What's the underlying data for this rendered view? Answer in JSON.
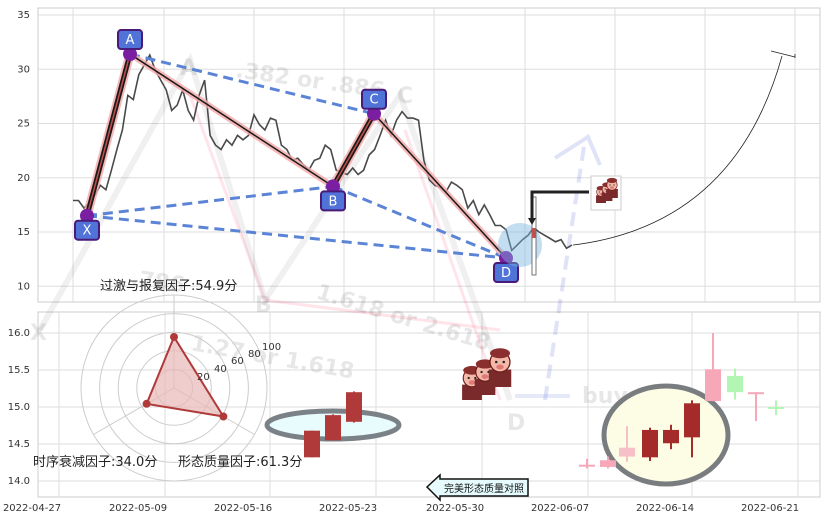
{
  "chart_data": [
    {
      "type": "line",
      "title": "",
      "ylim": [
        8,
        35.5
      ],
      "yticks": [
        "35",
        "30",
        "25",
        "20",
        "15",
        "10"
      ],
      "grid": true,
      "series": [
        {
          "values": [
            17.9,
            17.9,
            17.2,
            17.7,
            18.4,
            19.3,
            18.9,
            20.7,
            22.6,
            24.4,
            27.6,
            27.2,
            29.5,
            30.4,
            31.3,
            29.9,
            29.0,
            28.1,
            26.2,
            26.7,
            28.1,
            26.2,
            25.3,
            27.6,
            29.0,
            23.9,
            23.0,
            22.6,
            23.5,
            23.0,
            23.9,
            23.5,
            23.9,
            25.8,
            24.9,
            24.4,
            25.5,
            25.3,
            23.0,
            22.6,
            21.6,
            21.8,
            21.2,
            20.7,
            21.6,
            21.8,
            23.0,
            22.6,
            20.7,
            20.5,
            20.3,
            20.9,
            20.3,
            20.7,
            22.1,
            22.6,
            23.9,
            25.3,
            23.9,
            25.3,
            26.1,
            25.5,
            25.5,
            25.3,
            21.6,
            19.8,
            19.3,
            19.1,
            18.7,
            19.6,
            19.3,
            18.9,
            17.2,
            17.9,
            16.6,
            17.5,
            16.6,
            15.6,
            15.6,
            15.2,
            13.3,
            13.8,
            14.3,
            14.7,
            15.4,
            15.0,
            14.7,
            14.4,
            14.1,
            14.3,
            13.5,
            13.8
          ]
        }
      ],
      "pattern_points": [
        {
          "label": "X",
          "price": 16.5
        },
        {
          "label": "A",
          "price": 31.4
        },
        {
          "label": "B",
          "price": 19.2
        },
        {
          "label": "C",
          "price": 25.9
        },
        {
          "label": "D",
          "price": 12.6
        }
      ],
      "watermark": {
        "ratio_ac": ".382 or .886",
        "ratio_xb": ".786",
        "ratio_bd": "1.618 or 2.618",
        "ratio_cd": "1.27 or 1.618",
        "letters": [
          "X",
          "A",
          "B",
          "C",
          "D"
        ],
        "signal": "buy"
      },
      "colors": {
        "price": "#4a4a4a",
        "pattern": "#1a1a1a",
        "halo": "#f4a6a6",
        "dashed": "#5b84d6",
        "point": "#7b1fa2",
        "label_bg": "#4f73d6"
      }
    },
    {
      "type": "candlestick",
      "ylim": [
        13.8,
        16.3
      ],
      "yticks": [
        "16.0",
        "15.5",
        "15.0",
        "14.5",
        "14.0"
      ],
      "xticks": [
        "2022-04-27",
        "2022-05-09",
        "2022-05-16",
        "2022-05-23",
        "2022-05-30",
        "2022-06-07",
        "2022-06-14",
        "2022-06-21"
      ],
      "reference_candles": [
        {
          "date": "2022-05-18",
          "open": 14.68,
          "close": 14.32,
          "high": 14.68,
          "low": 14.32,
          "color": "#b03a3a"
        },
        {
          "date": "2022-05-19",
          "open": 14.89,
          "close": 14.55,
          "high": 14.9,
          "low": 14.55,
          "color": "#b03a3a"
        },
        {
          "date": "2022-05-20",
          "open": 15.2,
          "close": 14.8,
          "high": 15.21,
          "low": 14.79,
          "color": "#b03a3a"
        }
      ],
      "candles": [
        {
          "date": "2022-06-07",
          "open": 14.22,
          "close": 14.22,
          "high": 14.3,
          "low": 14.17,
          "color": "#f7a8b8"
        },
        {
          "date": "2022-06-08",
          "open": 14.19,
          "close": 14.28,
          "high": 14.33,
          "low": 14.17,
          "color": "#f7a8b8"
        },
        {
          "date": "2022-06-09",
          "open": 14.33,
          "close": 14.45,
          "high": 14.74,
          "low": 14.26,
          "color": "#f7c0c8"
        },
        {
          "date": "2022-06-10",
          "open": 14.69,
          "close": 14.32,
          "high": 14.72,
          "low": 14.27,
          "color": "#a52a2a"
        },
        {
          "date": "2022-06-13",
          "open": 14.69,
          "close": 14.51,
          "high": 14.76,
          "low": 14.43,
          "color": "#a52a2a"
        },
        {
          "date": "2022-06-14",
          "open": 15.05,
          "close": 14.59,
          "high": 15.09,
          "low": 14.32,
          "color": "#a52a2a"
        },
        {
          "date": "2022-06-15",
          "open": 15.08,
          "close": 15.51,
          "high": 16.0,
          "low": 15.08,
          "color": "#f7a8b8"
        },
        {
          "date": "2022-06-16",
          "open": 15.42,
          "close": 15.2,
          "high": 15.52,
          "low": 15.1,
          "color": "#b3f5b3"
        },
        {
          "date": "2022-06-17",
          "open": 15.2,
          "close": 15.2,
          "high": 15.2,
          "low": 14.81,
          "color": "#f7a8b8"
        },
        {
          "date": "2022-06-20",
          "open": 15.0,
          "close": 15.0,
          "high": 15.09,
          "low": 14.89,
          "color": "#b3f5b3"
        }
      ],
      "button": "完美形态质量对照"
    },
    {
      "type": "radar",
      "rlim": [
        0,
        100
      ],
      "rticks": [
        "20",
        "40",
        "60",
        "80",
        "100"
      ],
      "axes": [
        {
          "label": "过激与报复因子:54.9分",
          "value": 54.9
        },
        {
          "label": "时序衰减因子:34.0分",
          "value": 34.0
        },
        {
          "label": "形态质量因子:61.3分",
          "value": 61.3
        }
      ],
      "colors": {
        "stroke": "#b03a3a",
        "fill": "#e8b8b8"
      }
    }
  ]
}
